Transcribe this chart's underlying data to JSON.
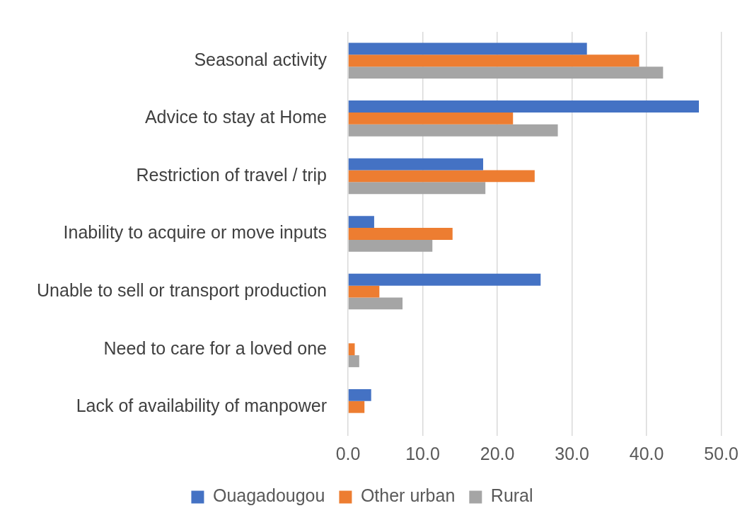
{
  "chart_data": {
    "type": "bar",
    "orientation": "horizontal",
    "categories": [
      "Seasonal activity",
      "Advice to stay at Home",
      "Restriction of travel / trip",
      "Inability to acquire or move inputs",
      "Unable to sell or transport production",
      "Need to care for a loved one",
      "Lack of availability of manpower"
    ],
    "series": [
      {
        "name": "Ouagadougou",
        "color": "#4472c4",
        "values": [
          32.0,
          47.0,
          18.1,
          3.5,
          25.8,
          null,
          3.1
        ]
      },
      {
        "name": "Other urban",
        "color": "#ed7d31",
        "values": [
          39.0,
          22.1,
          25.0,
          14.0,
          4.2,
          0.9,
          2.2
        ]
      },
      {
        "name": "Rural",
        "color": "#a5a5a5",
        "values": [
          42.2,
          28.1,
          18.4,
          11.3,
          7.3,
          1.5,
          null
        ]
      }
    ],
    "xlim": [
      0,
      50
    ],
    "xticks": [
      {
        "value": 0,
        "label": "0.0"
      },
      {
        "value": 10,
        "label": "10.0"
      },
      {
        "value": 20,
        "label": "20.0"
      },
      {
        "value": 30,
        "label": "30.0"
      },
      {
        "value": 40,
        "label": "40.0"
      },
      {
        "value": 50,
        "label": "50.0"
      }
    ],
    "grid": "x",
    "legend": "bottom"
  }
}
